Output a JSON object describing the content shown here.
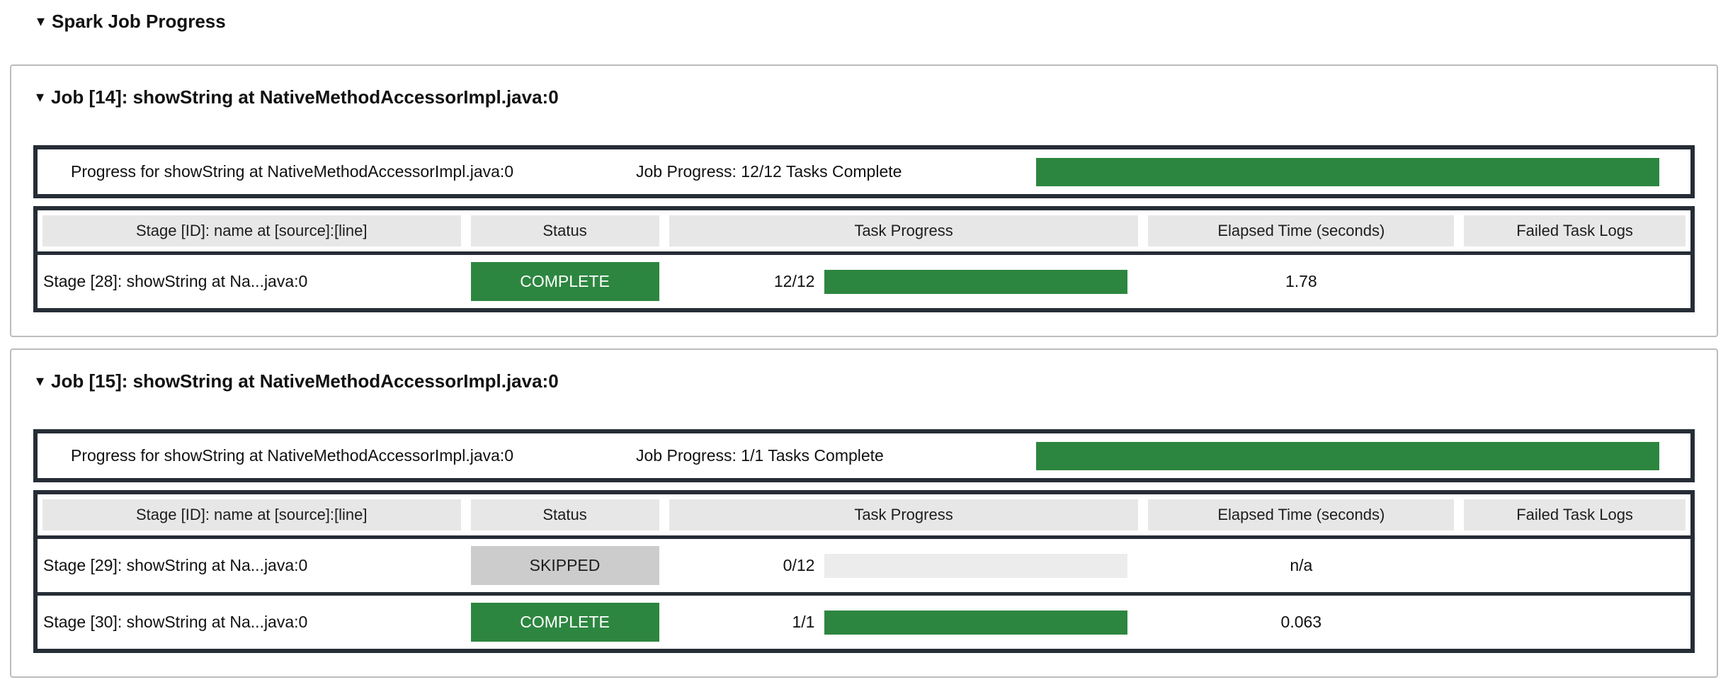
{
  "title": "Spark Job Progress",
  "icons": {
    "collapse": "▾"
  },
  "colors": {
    "green": "#2d8640",
    "skipped_bg": "#cccccc",
    "header_cell": "#e7e7e7",
    "track": "#ececec",
    "border": "#262d36"
  },
  "headers": [
    "Stage [ID]: name at [source]:[line]",
    "Status",
    "Task Progress",
    "Elapsed Time (seconds)",
    "Failed Task Logs"
  ],
  "jobs": [
    {
      "title": "Job [14]: showString at NativeMethodAccessorImpl.java:0",
      "progress_label": "Progress for showString at NativeMethodAccessorImpl.java:0",
      "progress_text": "Job Progress: 12/12 Tasks Complete",
      "progress_pct": 100,
      "stages": [
        {
          "name": "Stage [28]: showString at Na...java:0",
          "status": "COMPLETE",
          "tasks": "12/12",
          "task_pct": 100,
          "elapsed": "1.78",
          "failed_logs": ""
        }
      ]
    },
    {
      "title": "Job [15]: showString at NativeMethodAccessorImpl.java:0",
      "progress_label": "Progress for showString at NativeMethodAccessorImpl.java:0",
      "progress_text": "Job Progress: 1/1 Tasks Complete",
      "progress_pct": 100,
      "stages": [
        {
          "name": "Stage [29]: showString at Na...java:0",
          "status": "SKIPPED",
          "tasks": "0/12",
          "task_pct": 0,
          "elapsed": "n/a",
          "failed_logs": ""
        },
        {
          "name": "Stage [30]: showString at Na...java:0",
          "status": "COMPLETE",
          "tasks": "1/1",
          "task_pct": 100,
          "elapsed": "0.063",
          "failed_logs": ""
        }
      ]
    }
  ]
}
